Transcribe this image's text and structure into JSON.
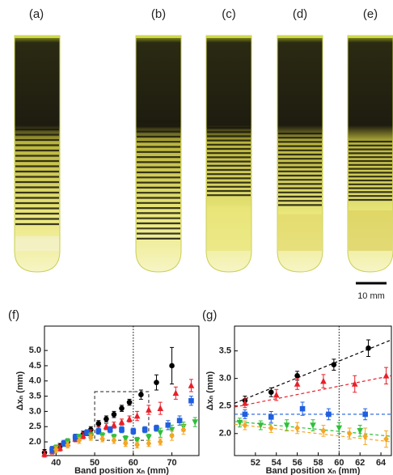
{
  "photo_labels": [
    "(a)",
    "(b)",
    "(c)",
    "(d)",
    "(e)"
  ],
  "scale_bar": "10 mm",
  "chart_data": [
    {
      "type": "scatter",
      "panel_label": "(f)",
      "x_label": "Band position xₙ (mm)",
      "y_label": "Δxₙ (mm)",
      "xlim": [
        37,
        77
      ],
      "ylim": [
        1.55,
        5.8
      ],
      "xticks": [
        40,
        50,
        60,
        70
      ],
      "yticks": [
        {
          "value": 2,
          "label": "2.0"
        },
        2.5,
        {
          "value": 3,
          "label": "3.0"
        },
        3.5,
        {
          "value": 4,
          "label": "4.0"
        },
        4.5,
        {
          "value": 5,
          "label": "5.0"
        }
      ],
      "vline": 60,
      "zoom_box": {
        "x": [
          50,
          64
        ],
        "y": [
          2.05,
          3.65
        ]
      },
      "series": [
        {
          "color": "#000000",
          "marker": "circle",
          "x": [
            37,
            39,
            41,
            43,
            45,
            47,
            49,
            51,
            53,
            55,
            57,
            59,
            62,
            66,
            70
          ],
          "values": [
            1.65,
            1.75,
            1.85,
            2.0,
            2.15,
            2.25,
            2.4,
            2.6,
            2.75,
            2.9,
            3.1,
            3.3,
            3.55,
            3.95,
            4.5
          ],
          "errors": [
            0.1,
            0.1,
            0.1,
            0.1,
            0.1,
            0.1,
            0.1,
            0.1,
            0.1,
            0.1,
            0.1,
            0.1,
            0.15,
            0.25,
            0.6
          ]
        },
        {
          "color": "#e8202a",
          "marker": "triangle-up",
          "x": [
            37,
            39,
            41,
            43,
            45,
            47,
            49,
            51,
            53,
            55,
            57,
            59,
            61,
            64,
            67,
            71,
            75
          ],
          "values": [
            1.6,
            1.7,
            1.8,
            1.95,
            2.1,
            2.2,
            2.3,
            2.4,
            2.5,
            2.55,
            2.65,
            2.75,
            2.85,
            3.05,
            3.1,
            3.6,
            3.85
          ],
          "errors": [
            0.1,
            0.1,
            0.1,
            0.1,
            0.1,
            0.1,
            0.1,
            0.1,
            0.1,
            0.1,
            0.1,
            0.1,
            0.15,
            0.15,
            0.2,
            0.2,
            0.2
          ]
        },
        {
          "color": "#1f5fe0",
          "marker": "square",
          "x": [
            39,
            42,
            45,
            48,
            51,
            54,
            57,
            60,
            63,
            66,
            69,
            72,
            75
          ],
          "values": [
            1.75,
            1.95,
            2.15,
            2.3,
            2.35,
            2.4,
            2.4,
            2.35,
            2.4,
            2.45,
            2.55,
            2.7,
            3.35
          ],
          "errors": [
            0.1,
            0.1,
            0.1,
            0.1,
            0.1,
            0.1,
            0.1,
            0.1,
            0.1,
            0.1,
            0.15,
            0.15,
            0.15
          ]
        },
        {
          "color": "#2fbf3a",
          "marker": "triangle-down",
          "x": [
            40,
            43,
            46,
            49,
            52,
            55,
            58,
            61,
            64,
            67,
            70,
            73,
            76
          ],
          "values": [
            1.8,
            2.0,
            2.15,
            2.2,
            2.2,
            2.15,
            2.1,
            2.05,
            2.15,
            2.3,
            2.4,
            2.5,
            2.65
          ],
          "errors": [
            0.1,
            0.1,
            0.1,
            0.1,
            0.1,
            0.1,
            0.1,
            0.1,
            0.1,
            0.15,
            0.15,
            0.15,
            0.15
          ]
        },
        {
          "color": "#f5a623",
          "marker": "diamond",
          "x": [
            40,
            43,
            46,
            49,
            52,
            55,
            58,
            61,
            64,
            67,
            70,
            73
          ],
          "values": [
            1.75,
            1.9,
            2.05,
            2.15,
            2.1,
            2.05,
            1.95,
            1.9,
            1.95,
            2.0,
            2.2,
            2.4
          ],
          "errors": [
            0.1,
            0.1,
            0.1,
            0.1,
            0.1,
            0.1,
            0.1,
            0.1,
            0.1,
            0.1,
            0.15,
            0.15
          ]
        }
      ]
    },
    {
      "type": "scatter",
      "panel_label": "(g)",
      "x_label": "Band position xₙ (mm)",
      "y_label": "Δxₙ (mm)",
      "xlim": [
        50,
        65
      ],
      "ylim": [
        1.6,
        3.95
      ],
      "xticks": [
        52,
        54,
        56,
        58,
        60,
        62,
        64
      ],
      "yticks": [
        {
          "value": 2,
          "label": "2.0"
        },
        2.5,
        {
          "value": 3,
          "label": "3.0"
        },
        3.5
      ],
      "vline": 60,
      "series": [
        {
          "color": "#000000",
          "marker": "circle",
          "x": [
            51,
            53.5,
            56,
            59.5,
            62.8
          ],
          "values": [
            2.6,
            2.75,
            3.05,
            3.25,
            3.55
          ],
          "errors": [
            0.08,
            0.08,
            0.08,
            0.1,
            0.15
          ],
          "fit": {
            "x": [
              50,
              65
            ],
            "y": [
              2.55,
              3.7
            ]
          }
        },
        {
          "color": "#e8202a",
          "marker": "triangle-up",
          "x": [
            51,
            54,
            56,
            58.5,
            61.5,
            64.5
          ],
          "values": [
            2.55,
            2.7,
            2.9,
            2.95,
            2.9,
            3.05
          ],
          "errors": [
            0.08,
            0.1,
            0.1,
            0.12,
            0.15,
            0.15
          ],
          "fit": {
            "x": [
              50,
              65
            ],
            "y": [
              2.48,
              3.05
            ]
          }
        },
        {
          "color": "#1f5fe0",
          "marker": "square",
          "x": [
            51,
            53.5,
            56.5,
            59,
            62.5
          ],
          "values": [
            2.35,
            2.3,
            2.45,
            2.35,
            2.35
          ],
          "errors": [
            0.08,
            0.1,
            0.12,
            0.1,
            0.1
          ],
          "fit": {
            "x": [
              50,
              65
            ],
            "y": [
              2.35,
              2.35
            ]
          }
        },
        {
          "color": "#2fbf3a",
          "marker": "triangle-down",
          "x": [
            50.5,
            52.5,
            55,
            57.5,
            60,
            62
          ],
          "values": [
            2.2,
            2.15,
            2.15,
            2.15,
            2.1,
            2.05
          ],
          "errors": [
            0.08,
            0.08,
            0.1,
            0.1,
            0.1,
            0.1
          ],
          "fit": {
            "x": [
              50,
              65
            ],
            "y": [
              2.22,
              1.95
            ]
          }
        },
        {
          "color": "#f5a623",
          "marker": "diamond",
          "x": [
            51,
            53.5,
            56,
            58.5,
            61,
            62.5,
            64.5
          ],
          "values": [
            2.15,
            2.1,
            2.1,
            2.05,
            2.0,
            1.95,
            1.9
          ],
          "errors": [
            0.08,
            0.08,
            0.1,
            0.1,
            0.1,
            0.15,
            0.15
          ],
          "fit": {
            "x": [
              50,
              65
            ],
            "y": [
              2.17,
              1.85
            ]
          }
        }
      ]
    }
  ]
}
